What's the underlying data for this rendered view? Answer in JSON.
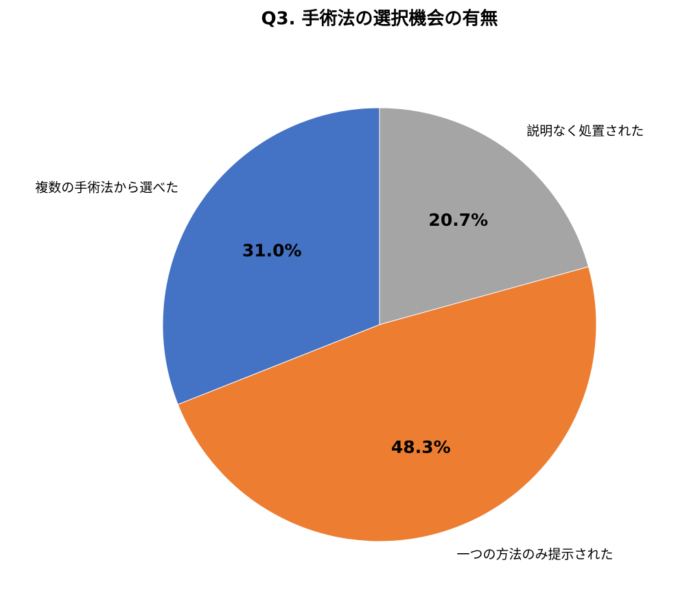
{
  "chart_data": {
    "type": "pie",
    "title": "Q3. 手術法の選択機会の有無",
    "categories": [
      "説明なく処置された",
      "一つの方法のみ提示された",
      "複数の手術法から選べた"
    ],
    "values": [
      20.7,
      48.3,
      31.0
    ],
    "value_labels": [
      "20.7%",
      "48.3%",
      "31.0%"
    ],
    "colors": [
      "#a5a5a5",
      "#ed7d31",
      "#4472c4"
    ]
  }
}
